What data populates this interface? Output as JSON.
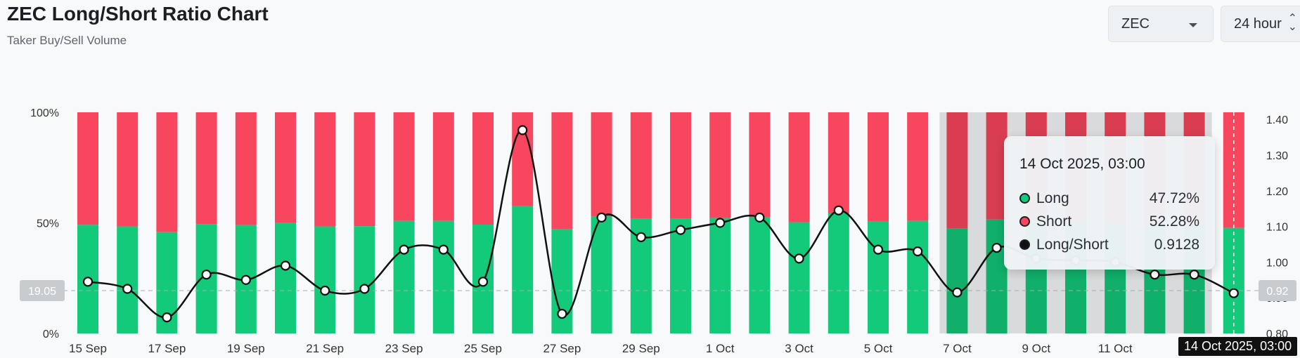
{
  "header": {
    "title": "ZEC Long/Short Ratio Chart",
    "subtitle": "Taker Buy/Sell Volume"
  },
  "controls": {
    "coin_value": "ZEC",
    "interval_value": "24 hour"
  },
  "tooltip": {
    "date": "14 Oct 2025, 03:00",
    "rows": [
      {
        "label": "Long",
        "value": "47.72%",
        "color": "#13c97a"
      },
      {
        "label": "Short",
        "value": "52.28%",
        "color": "#f7465e"
      },
      {
        "label": "Long/Short",
        "value": "0.9128",
        "color": "#111111"
      }
    ]
  },
  "hover_x_label": "14 Oct 2025, 03:00",
  "chart_data": {
    "type": "bar",
    "stacked": true,
    "categories": [
      "15 Sep",
      "16 Sep",
      "17 Sep",
      "18 Sep",
      "19 Sep",
      "20 Sep",
      "21 Sep",
      "22 Sep",
      "23 Sep",
      "24 Sep",
      "25 Sep",
      "26 Sep",
      "27 Sep",
      "28 Sep",
      "29 Sep",
      "30 Sep",
      "1 Oct",
      "2 Oct",
      "3 Oct",
      "4 Oct",
      "5 Oct",
      "6 Oct",
      "7 Oct",
      "8 Oct",
      "9 Oct",
      "10 Oct",
      "11 Oct",
      "12 Oct",
      "13 Oct",
      "14 Oct"
    ],
    "x_tick_labels": [
      "15 Sep",
      "17 Sep",
      "19 Sep",
      "21 Sep",
      "23 Sep",
      "25 Sep",
      "27 Sep",
      "29 Sep",
      "1 Oct",
      "3 Oct",
      "5 Oct",
      "7 Oct",
      "9 Oct",
      "11 Oct"
    ],
    "series": [
      {
        "name": "Long",
        "color": "#13c97a",
        "values": [
          49.1,
          48.4,
          45.8,
          49.5,
          49.0,
          49.9,
          48.4,
          48.5,
          50.9,
          50.9,
          49.2,
          57.6,
          47.1,
          52.9,
          51.8,
          51.8,
          52.2,
          52.7,
          50.3,
          54.3,
          50.8,
          50.9,
          47.4,
          51.5,
          51.0,
          50.9,
          50.0,
          49.0,
          49.0,
          47.72
        ]
      },
      {
        "name": "Short",
        "color": "#f7465e",
        "values": [
          50.9,
          51.6,
          54.2,
          50.5,
          51.0,
          50.1,
          51.6,
          51.5,
          49.1,
          49.1,
          50.8,
          42.4,
          52.9,
          47.1,
          48.2,
          48.2,
          47.8,
          47.3,
          49.7,
          45.7,
          49.2,
          49.1,
          52.6,
          48.5,
          49.0,
          49.1,
          50.0,
          51.0,
          51.0,
          52.28
        ]
      },
      {
        "name": "Long/Short",
        "color": "#111111",
        "axis": "right",
        "values": [
          0.945,
          0.925,
          0.845,
          0.965,
          0.95,
          0.99,
          0.92,
          0.925,
          1.035,
          1.035,
          0.945,
          1.37,
          0.855,
          1.125,
          1.07,
          1.09,
          1.11,
          1.125,
          1.01,
          1.145,
          1.035,
          1.03,
          0.915,
          1.04,
          1.01,
          1.005,
          1.0,
          0.965,
          0.965,
          0.9128
        ]
      }
    ],
    "y_left": {
      "ticks": [
        "0%",
        "50%",
        "100%"
      ],
      "range": [
        0,
        100
      ]
    },
    "y_right": {
      "ticks": [
        "0.80",
        "0.90",
        "1.00",
        "1.10",
        "1.20",
        "1.30",
        "1.40"
      ],
      "range": [
        0.8,
        1.42
      ]
    },
    "left_marker_label": "19.05",
    "right_marker_label": "0.92",
    "marker_value": 0.92,
    "highlight_index": 29
  }
}
